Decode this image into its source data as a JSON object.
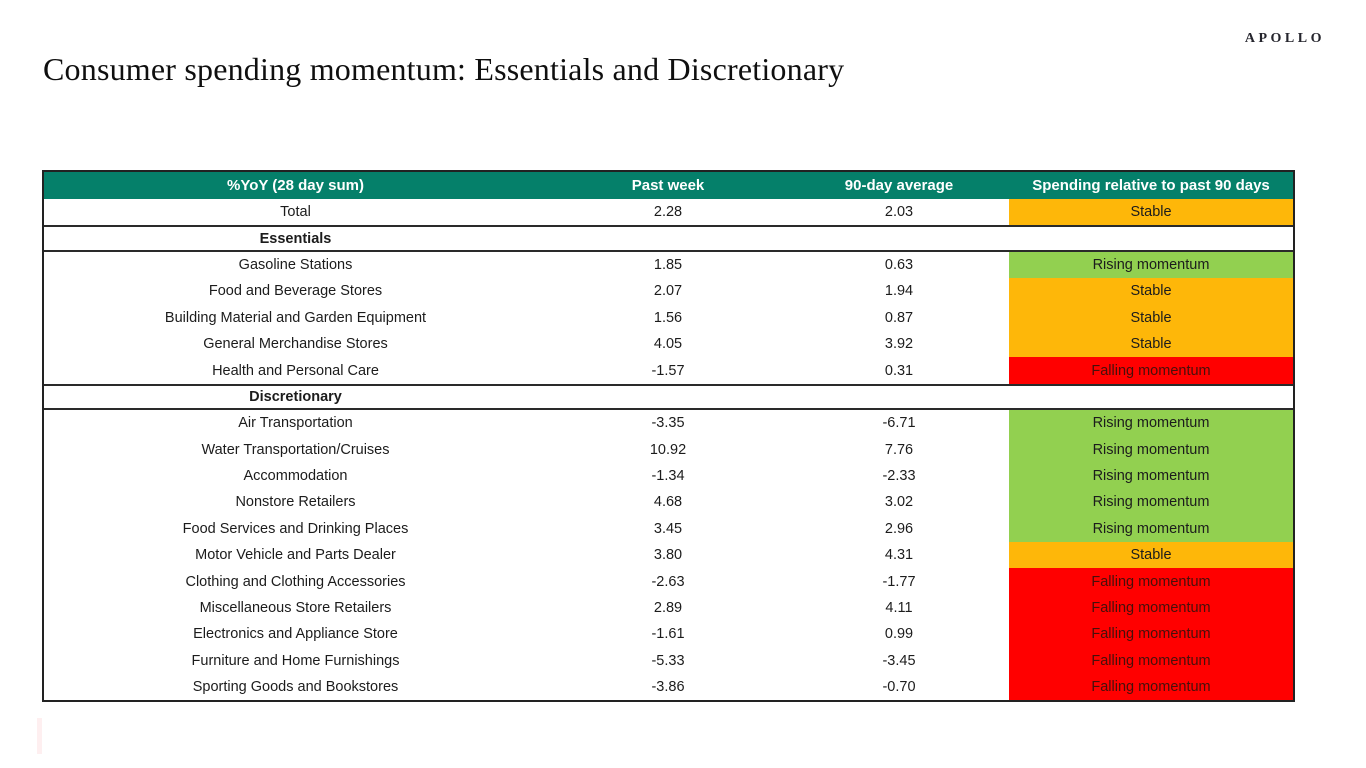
{
  "logo": "APOLLO",
  "title": "Consumer spending momentum: Essentials and Discretionary",
  "colors": {
    "header_bg": "#05806A",
    "header_text": "#FFFFFF",
    "green": "#92D050",
    "amber": "#FEB709",
    "red": "#FF0000",
    "red_cell_text": "#46100B",
    "cell_text": "#1C1C1C"
  },
  "table": {
    "columns": [
      "%YoY (28 day sum)",
      "Past week",
      "90-day average",
      "Spending relative to past 90 days"
    ],
    "rows": [
      {
        "type": "data",
        "label": "Total",
        "past_week": "2.28",
        "avg_90": "2.03",
        "status": "Stable",
        "status_color": "amber"
      },
      {
        "type": "section",
        "label": "Essentials"
      },
      {
        "type": "data",
        "label": "Gasoline Stations",
        "past_week": "1.85",
        "avg_90": "0.63",
        "status": "Rising momentum",
        "status_color": "green"
      },
      {
        "type": "data",
        "label": "Food and Beverage Stores",
        "past_week": "2.07",
        "avg_90": "1.94",
        "status": "Stable",
        "status_color": "amber"
      },
      {
        "type": "data",
        "label": "Building Material and Garden Equipment",
        "past_week": "1.56",
        "avg_90": "0.87",
        "status": "Stable",
        "status_color": "amber"
      },
      {
        "type": "data",
        "label": "General Merchandise Stores",
        "past_week": "4.05",
        "avg_90": "3.92",
        "status": "Stable",
        "status_color": "amber"
      },
      {
        "type": "data",
        "label": "Health and Personal Care",
        "past_week": "-1.57",
        "avg_90": "0.31",
        "status": "Falling momentum",
        "status_color": "red"
      },
      {
        "type": "section",
        "label": "Discretionary"
      },
      {
        "type": "data",
        "label": "Air Transportation",
        "past_week": "-3.35",
        "avg_90": "-6.71",
        "status": "Rising momentum",
        "status_color": "green"
      },
      {
        "type": "data",
        "label": "Water Transportation/Cruises",
        "past_week": "10.92",
        "avg_90": "7.76",
        "status": "Rising momentum",
        "status_color": "green"
      },
      {
        "type": "data",
        "label": "Accommodation",
        "past_week": "-1.34",
        "avg_90": "-2.33",
        "status": "Rising momentum",
        "status_color": "green"
      },
      {
        "type": "data",
        "label": "Nonstore Retailers",
        "past_week": "4.68",
        "avg_90": "3.02",
        "status": "Rising momentum",
        "status_color": "green"
      },
      {
        "type": "data",
        "label": "Food Services and Drinking Places",
        "past_week": "3.45",
        "avg_90": "2.96",
        "status": "Rising momentum",
        "status_color": "green"
      },
      {
        "type": "data",
        "label": "Motor Vehicle and Parts Dealer",
        "past_week": "3.80",
        "avg_90": "4.31",
        "status": "Stable",
        "status_color": "amber"
      },
      {
        "type": "data",
        "label": "Clothing and Clothing Accessories",
        "past_week": "-2.63",
        "avg_90": "-1.77",
        "status": "Falling momentum",
        "status_color": "red"
      },
      {
        "type": "data",
        "label": "Miscellaneous Store Retailers",
        "past_week": "2.89",
        "avg_90": "4.11",
        "status": "Falling momentum",
        "status_color": "red"
      },
      {
        "type": "data",
        "label": "Electronics and Appliance Store",
        "past_week": "-1.61",
        "avg_90": "0.99",
        "status": "Falling momentum",
        "status_color": "red"
      },
      {
        "type": "data",
        "label": "Furniture and Home Furnishings",
        "past_week": "-5.33",
        "avg_90": "-3.45",
        "status": "Falling momentum",
        "status_color": "red"
      },
      {
        "type": "data",
        "label": "Sporting Goods and Bookstores",
        "past_week": "-3.86",
        "avg_90": "-0.70",
        "status": "Falling momentum",
        "status_color": "red"
      }
    ]
  }
}
